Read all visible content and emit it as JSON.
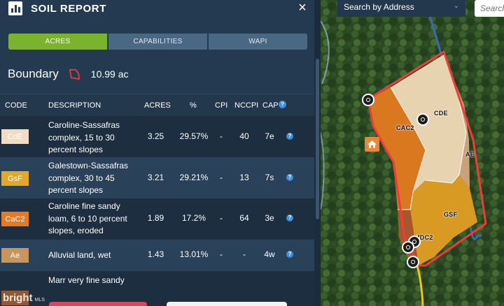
{
  "header": {
    "title": "SOIL REPORT",
    "close": "×",
    "report_icon": "bar-chart-icon",
    "close_icon": "close-icon"
  },
  "tabs": [
    {
      "label": "ACRES",
      "active": true
    },
    {
      "label": "CAPABILITIES",
      "active": false
    },
    {
      "label": "WAPI",
      "active": false
    }
  ],
  "boundary": {
    "label": "Boundary",
    "value": "10.99 ac",
    "icon": "boundary-polygon-icon",
    "icon_color": "#e23b3b"
  },
  "table": {
    "columns": [
      "CODE",
      "DESCRIPTION",
      "ACRES",
      "%",
      "CPI",
      "NCCPI",
      "CAP"
    ],
    "rows": [
      {
        "code": "CdE",
        "code_color": "#f0dcc4",
        "code_text_color": "#ffffff",
        "description": "Caroline-Sassafras complex, 15 to 30 percent slopes",
        "acres": "3.25",
        "pct": "29.57%",
        "cpi": "-",
        "nccpi": "40",
        "cap": "7e"
      },
      {
        "code": "GsF",
        "code_color": "#e2a72d",
        "code_text_color": "#ffffff",
        "description": "Galestown-Sassafras complex, 30 to 45 percent slopes",
        "acres": "3.21",
        "pct": "29.21%",
        "cpi": "-",
        "nccpi": "13",
        "cap": "7s"
      },
      {
        "code": "CaC2",
        "code_color": "#e57a22",
        "code_text_color": "#ffffff",
        "description": "Caroline fine sandy loam, 6 to 10 percent slopes, eroded",
        "acres": "1.89",
        "pct": "17.2%",
        "cpi": "-",
        "nccpi": "64",
        "cap": "3e"
      },
      {
        "code": "Ae",
        "code_color": "#c8955c",
        "code_text_color": "#ffffff",
        "description": "Alluvial land, wet",
        "acres": "1.43",
        "pct": "13.01%",
        "cpi": "-",
        "nccpi": "-",
        "cap": "4w"
      },
      {
        "code": "",
        "code_color": "#8e5a33",
        "code_text_color": "#ffffff",
        "description": "Marr very fine sandy",
        "acres": "",
        "pct": "",
        "cpi": "",
        "nccpi": "",
        "cap": ""
      }
    ]
  },
  "map": {
    "search_placeholder": "Search by Address",
    "search_input_placeholder": "Search",
    "labels": [
      "CDE",
      "CAC2",
      "AE",
      "GSF",
      "MDC2"
    ],
    "boundary_color": "#f03b3b",
    "colors": {
      "CDE": "#e8d3b0",
      "CAC2": "#d9781f",
      "GSF": "#d99a24",
      "AE": "#c9a27a",
      "MDC2": "#a5582a"
    }
  },
  "watermark": {
    "text": "bright",
    "suffix": "MLS"
  }
}
